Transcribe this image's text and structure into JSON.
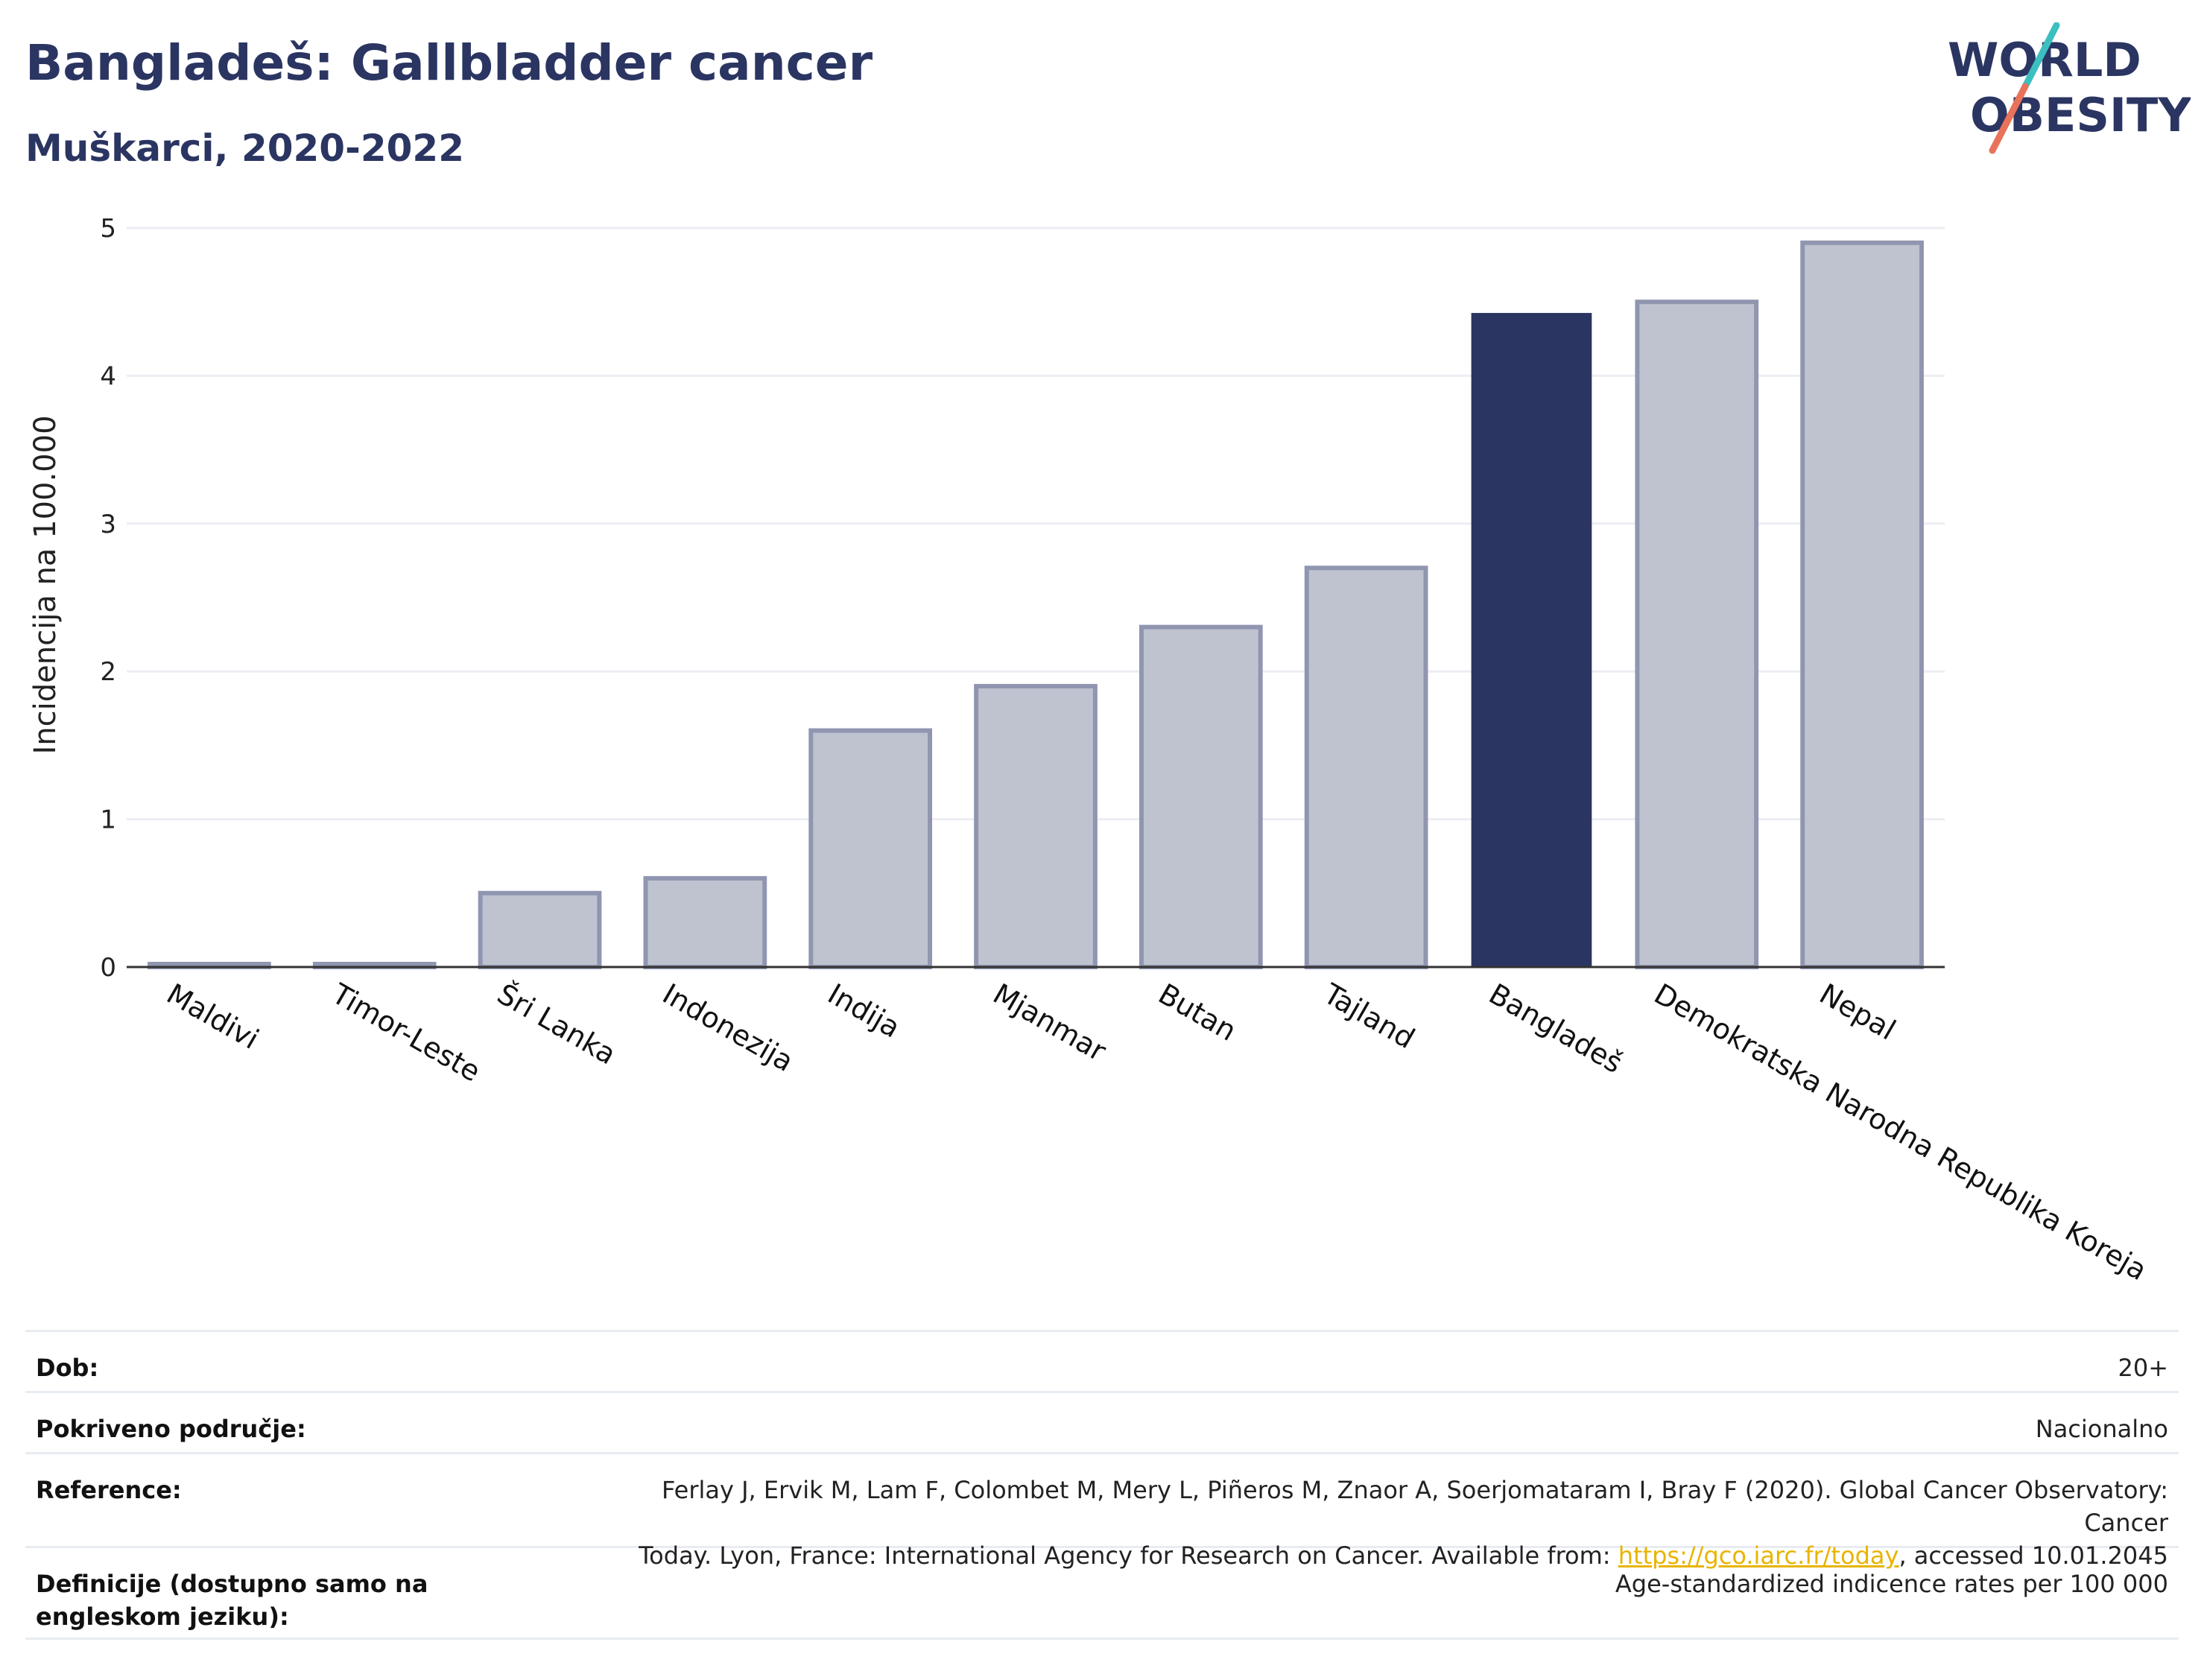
{
  "header": {
    "title": "Bangladeš: Gallbladder cancer",
    "subtitle": "Muškarci, 2020-2022"
  },
  "logo": {
    "line1": "WORLD",
    "line2": "OBESITY",
    "colors": {
      "text": "#2b3562",
      "slash_top": "#3bbfc0",
      "slash_bottom": "#e8735a"
    }
  },
  "chart_data": {
    "type": "bar",
    "categories": [
      "Maldivi",
      "Timor-Leste",
      "Šri Lanka",
      "Indonezija",
      "Indija",
      "Mjanmar",
      "Butan",
      "Tajland",
      "Bangladeš",
      "Demokratska Narodna Republika Koreja",
      "Nepal"
    ],
    "values": [
      0.02,
      0.02,
      0.5,
      0.6,
      1.6,
      1.9,
      2.3,
      2.7,
      4.42,
      4.5,
      4.9
    ],
    "highlight": "Bangladeš",
    "ylabel": "Incidencija na 100.000",
    "ylim": [
      0,
      5
    ],
    "yticks": [
      0,
      1,
      2,
      3,
      4,
      5
    ],
    "grid": true,
    "colors": {
      "bar": "#bfc3d0",
      "bar_border": "#9096b0",
      "highlight": "#2b3562",
      "grid": "#eceef3",
      "axis": "#333333"
    }
  },
  "meta": {
    "rows": [
      {
        "label": "Dob:",
        "value": "20+"
      },
      {
        "label": "Pokriveno područje:",
        "value": "Nacionalno"
      },
      {
        "label": "Reference:",
        "value_line1": "Ferlay J, Ervik M, Lam F, Colombet M, Mery L, Piñeros M, Znaor A, Soerjomataram I, Bray F (2020). Global Cancer Observatory: Cancer",
        "value_line2_pre": "Today. Lyon, France: International Agency for Research on Cancer. Available from: ",
        "link": "https://gco.iarc.fr/today",
        "value_line2_post": ", accessed 10.01.2045"
      },
      {
        "label": "Definicije (dostupno samo na engleskom jeziku):",
        "value": "Age-standardized indicence rates per 100 000"
      }
    ]
  }
}
